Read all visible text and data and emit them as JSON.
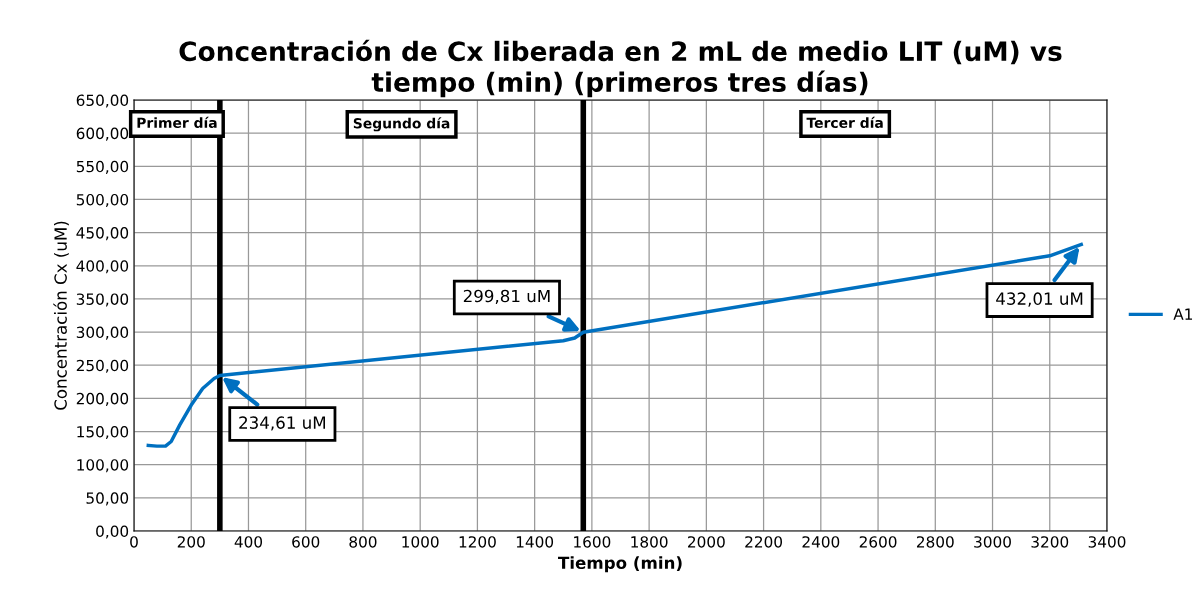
{
  "chart_data": {
    "type": "line",
    "title": "Concentración de Cx liberada en 2 mL de medio LIT (uM) vs\ntiempo (min) (primeros tres días)",
    "xlabel": "Tiempo (min)",
    "ylabel": "Concentración Cx (uM)",
    "series": [
      {
        "name": "A1",
        "color": "#0070c0",
        "x": [
          50,
          80,
          110,
          130,
          160,
          200,
          240,
          280,
          300,
          1500,
          1540,
          1570,
          3200,
          3310
        ],
        "values": [
          129,
          128,
          128,
          135,
          160,
          190,
          215,
          230,
          234.61,
          287,
          291,
          299.81,
          415,
          432.01
        ]
      }
    ],
    "xlim": [
      0,
      3400
    ],
    "xticks": [
      0,
      200,
      400,
      600,
      800,
      1000,
      1200,
      1400,
      1600,
      1800,
      2000,
      2200,
      2400,
      2600,
      2800,
      3000,
      3200,
      3400
    ],
    "ylim": [
      0,
      650
    ],
    "yticks": [
      {
        "value": 0,
        "label": "0,00"
      },
      {
        "value": 50,
        "label": "50,00"
      },
      {
        "value": 100,
        "label": "100,00"
      },
      {
        "value": 150,
        "label": "150,00"
      },
      {
        "value": 200,
        "label": "200,00"
      },
      {
        "value": 250,
        "label": "250,00"
      },
      {
        "value": 300,
        "label": "300,00"
      },
      {
        "value": 350,
        "label": "350,00"
      },
      {
        "value": 400,
        "label": "400,00"
      },
      {
        "value": 450,
        "label": "450,00"
      },
      {
        "value": 500,
        "label": "500,00"
      },
      {
        "value": 550,
        "label": "550,00"
      },
      {
        "value": 600,
        "label": "600,00"
      },
      {
        "value": 650,
        "label": "650,00"
      }
    ],
    "ref_lines": [
      {
        "axis": "x",
        "value": 300,
        "color": "#000000"
      },
      {
        "axis": "x",
        "value": 1570,
        "color": "#000000"
      }
    ],
    "annotations": [
      "Primer día",
      "Segundo día",
      "Tercer día",
      {
        "text": "234,61 uM",
        "x": 300,
        "y": 234.61
      },
      {
        "text": "299,81 uM",
        "x": 1570,
        "y": 299.81
      },
      {
        "text": "432,01 uM",
        "x": 3310,
        "y": 432.01
      }
    ],
    "grid": true,
    "legend": "right",
    "marker": "none",
    "line_style": "solid"
  }
}
